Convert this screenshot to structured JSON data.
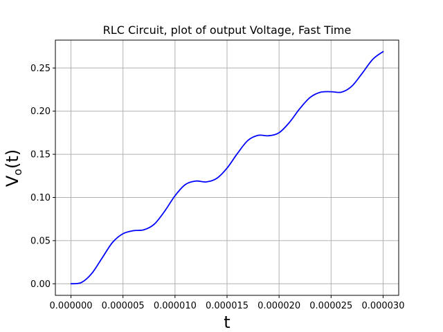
{
  "chart_data": {
    "type": "line",
    "title": "RLC Circuit, plot of output Voltage, Fast Time",
    "xlabel": "t",
    "ylabel": {
      "main": "V",
      "subscript": "o",
      "suffix": "(t)"
    },
    "xlim": [
      -1.5e-06,
      3.15e-05
    ],
    "ylim": [
      -0.0134,
      0.2823
    ],
    "grid": true,
    "line_color": "#0000ff",
    "grid_color": "#b0b0b0",
    "x_ticks": [
      {
        "value": 0.0,
        "label": "0.000000"
      },
      {
        "value": 5e-06,
        "label": "0.000005"
      },
      {
        "value": 1e-05,
        "label": "0.000010"
      },
      {
        "value": 1.5e-05,
        "label": "0.000015"
      },
      {
        "value": 2e-05,
        "label": "0.000020"
      },
      {
        "value": 2.5e-05,
        "label": "0.000025"
      },
      {
        "value": 3e-05,
        "label": "0.000030"
      }
    ],
    "y_ticks": [
      {
        "value": 0.0,
        "label": "0.00"
      },
      {
        "value": 0.05,
        "label": "0.05"
      },
      {
        "value": 0.1,
        "label": "0.10"
      },
      {
        "value": 0.15,
        "label": "0.15"
      },
      {
        "value": 0.2,
        "label": "0.20"
      },
      {
        "value": 0.25,
        "label": "0.25"
      }
    ],
    "series": [
      {
        "x": [
          0,
          1e-06,
          2e-06,
          3e-06,
          4e-06,
          5e-06,
          6e-06,
          7e-06,
          8e-06,
          9e-06,
          1e-05,
          1.1e-05,
          1.2e-05,
          1.3e-05,
          1.4e-05,
          1.5e-05,
          1.6e-05,
          1.7e-05,
          1.8e-05,
          1.9e-05,
          2e-05,
          2.1e-05,
          2.2e-05,
          2.3e-05,
          2.4e-05,
          2.5e-05,
          2.6e-05,
          2.7e-05,
          2.8e-05,
          2.9e-05,
          3e-05
        ],
        "y": [
          0.0,
          0.0015,
          0.012,
          0.03,
          0.048,
          0.058,
          0.0615,
          0.0625,
          0.069,
          0.084,
          0.102,
          0.115,
          0.119,
          0.118,
          0.122,
          0.134,
          0.151,
          0.166,
          0.172,
          0.1715,
          0.175,
          0.187,
          0.203,
          0.216,
          0.222,
          0.2225,
          0.222,
          0.229,
          0.244,
          0.26,
          0.269
        ]
      }
    ]
  }
}
